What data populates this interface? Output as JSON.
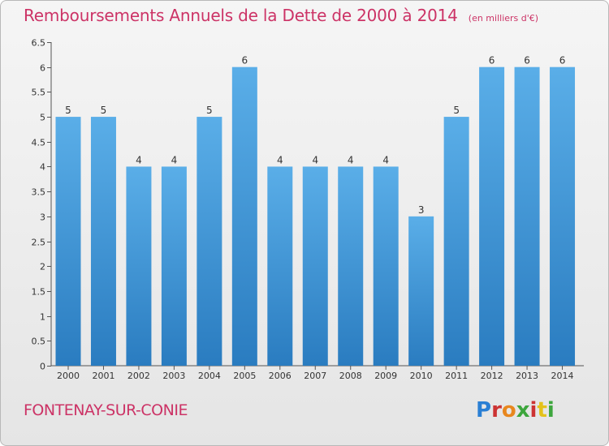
{
  "header": {
    "title": "Remboursements Annuels de la Dette de 2000 à 2014",
    "unit": "(en milliers d'€)"
  },
  "footer": {
    "commune": "FONTENAY-SUR-CONIE",
    "logo_text": "Proxiti"
  },
  "colors": {
    "accent": "#cc3366",
    "bar_light": "#5aaee8",
    "bar_dark": "#2a7cc0"
  },
  "chart_data": {
    "type": "bar",
    "title": "Remboursements Annuels de la Dette de 2000 à 2014",
    "subtitle": "(en milliers d'€)",
    "xlabel": "",
    "ylabel": "",
    "categories": [
      "2000",
      "2001",
      "2002",
      "2003",
      "2004",
      "2005",
      "2006",
      "2007",
      "2008",
      "2009",
      "2010",
      "2011",
      "2012",
      "2013",
      "2014"
    ],
    "values": [
      5,
      5,
      4,
      4,
      5,
      6,
      4,
      4,
      4,
      4,
      3,
      5,
      6,
      6,
      6
    ],
    "data_labels": [
      "5",
      "5",
      "4",
      "4",
      "5",
      "6",
      "4",
      "4",
      "4",
      "4",
      "3",
      "5",
      "6",
      "6",
      "6"
    ],
    "ylim": [
      0,
      6.5
    ],
    "yticks": [
      0,
      0.5,
      1,
      1.5,
      2,
      2.5,
      3,
      3.5,
      4,
      4.5,
      5,
      5.5,
      6,
      6.5
    ],
    "ytick_labels": [
      "0",
      "0.5",
      "1",
      "1.5",
      "2",
      "2.5",
      "3",
      "3.5",
      "4",
      "4.5",
      "5",
      "5.5",
      "6",
      "6.5"
    ],
    "grid": false,
    "legend": "none"
  }
}
